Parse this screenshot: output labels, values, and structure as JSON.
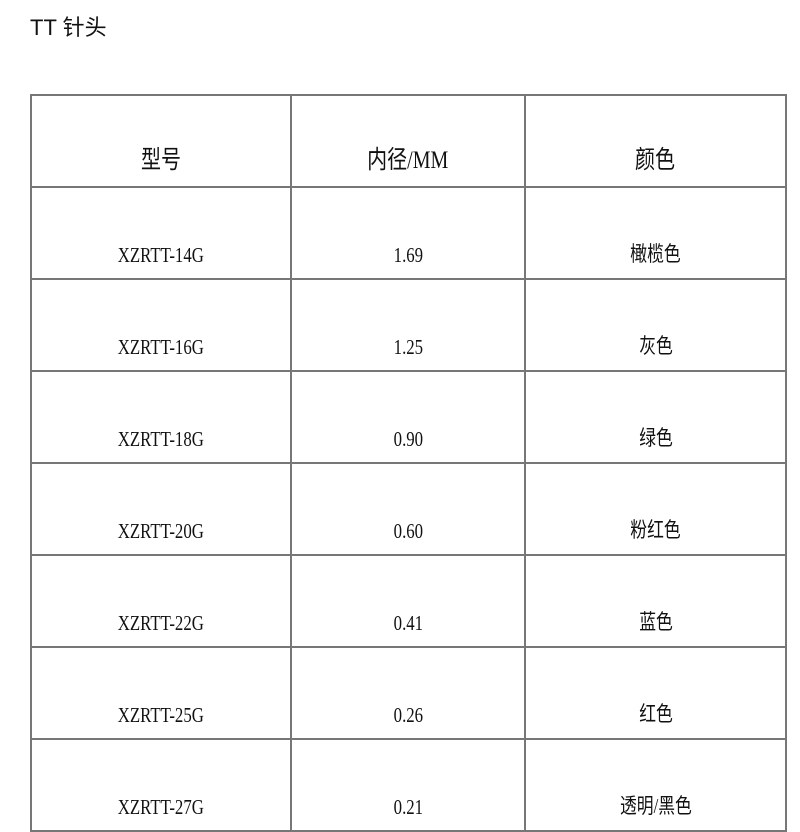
{
  "title": "TT 针头",
  "table": {
    "headers": [
      "型号",
      "内径/MM",
      "颜色"
    ],
    "rows": [
      [
        "XZRTT-14G",
        "1.69",
        "橄榄色"
      ],
      [
        "XZRTT-16G",
        "1.25",
        "灰色"
      ],
      [
        "XZRTT-18G",
        "0.90",
        "绿色"
      ],
      [
        "XZRTT-20G",
        "0.60",
        "粉红色"
      ],
      [
        "XZRTT-22G",
        "0.41",
        "蓝色"
      ],
      [
        "XZRTT-25G",
        "0.26",
        "红色"
      ],
      [
        "XZRTT-27G",
        "0.21",
        "透明/黑色"
      ]
    ]
  }
}
